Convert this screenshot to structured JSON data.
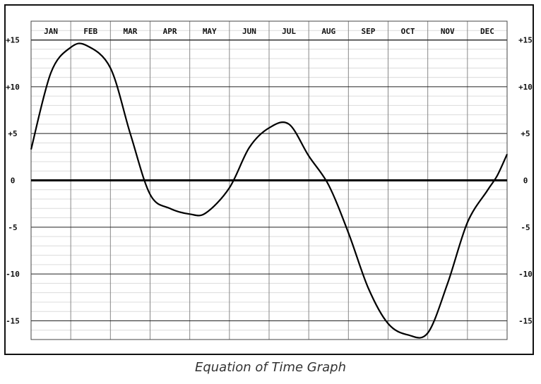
{
  "chart_data": {
    "type": "line",
    "title": "Equation of Time Graph",
    "xlabel": "",
    "ylabel": "",
    "months": [
      "JAN",
      "FEB",
      "MAR",
      "APR",
      "MAY",
      "JUN",
      "JUL",
      "AUG",
      "SEP",
      "OCT",
      "NOV",
      "DEC"
    ],
    "y_ticks": [
      15,
      10,
      5,
      0,
      -5,
      -10,
      -15
    ],
    "y_tick_labels": [
      "+15",
      "+10",
      "+5",
      "0",
      "-5",
      "-10",
      "-15"
    ],
    "ylim": [
      -17,
      17
    ],
    "grid": true,
    "series": [
      {
        "x_month": [
          0.0,
          0.5,
          1.0,
          1.4,
          2.0,
          2.5,
          3.0,
          3.5,
          4.0,
          4.4,
          5.0,
          5.5,
          6.0,
          6.5,
          7.0,
          7.5,
          8.0,
          8.5,
          9.0,
          9.5,
          10.0,
          10.5,
          11.0,
          11.5,
          11.75,
          12.0
        ],
        "y": [
          3.3,
          11.5,
          14.2,
          14.4,
          12.0,
          5.0,
          -1.5,
          -3.0,
          -3.6,
          -3.5,
          -0.8,
          3.5,
          5.6,
          6.0,
          2.6,
          -0.5,
          -5.6,
          -11.5,
          -15.3,
          -16.5,
          -16.3,
          -11.0,
          -4.5,
          -1.1,
          0.5,
          2.8
        ]
      }
    ]
  },
  "caption": "Equation of Time Graph"
}
